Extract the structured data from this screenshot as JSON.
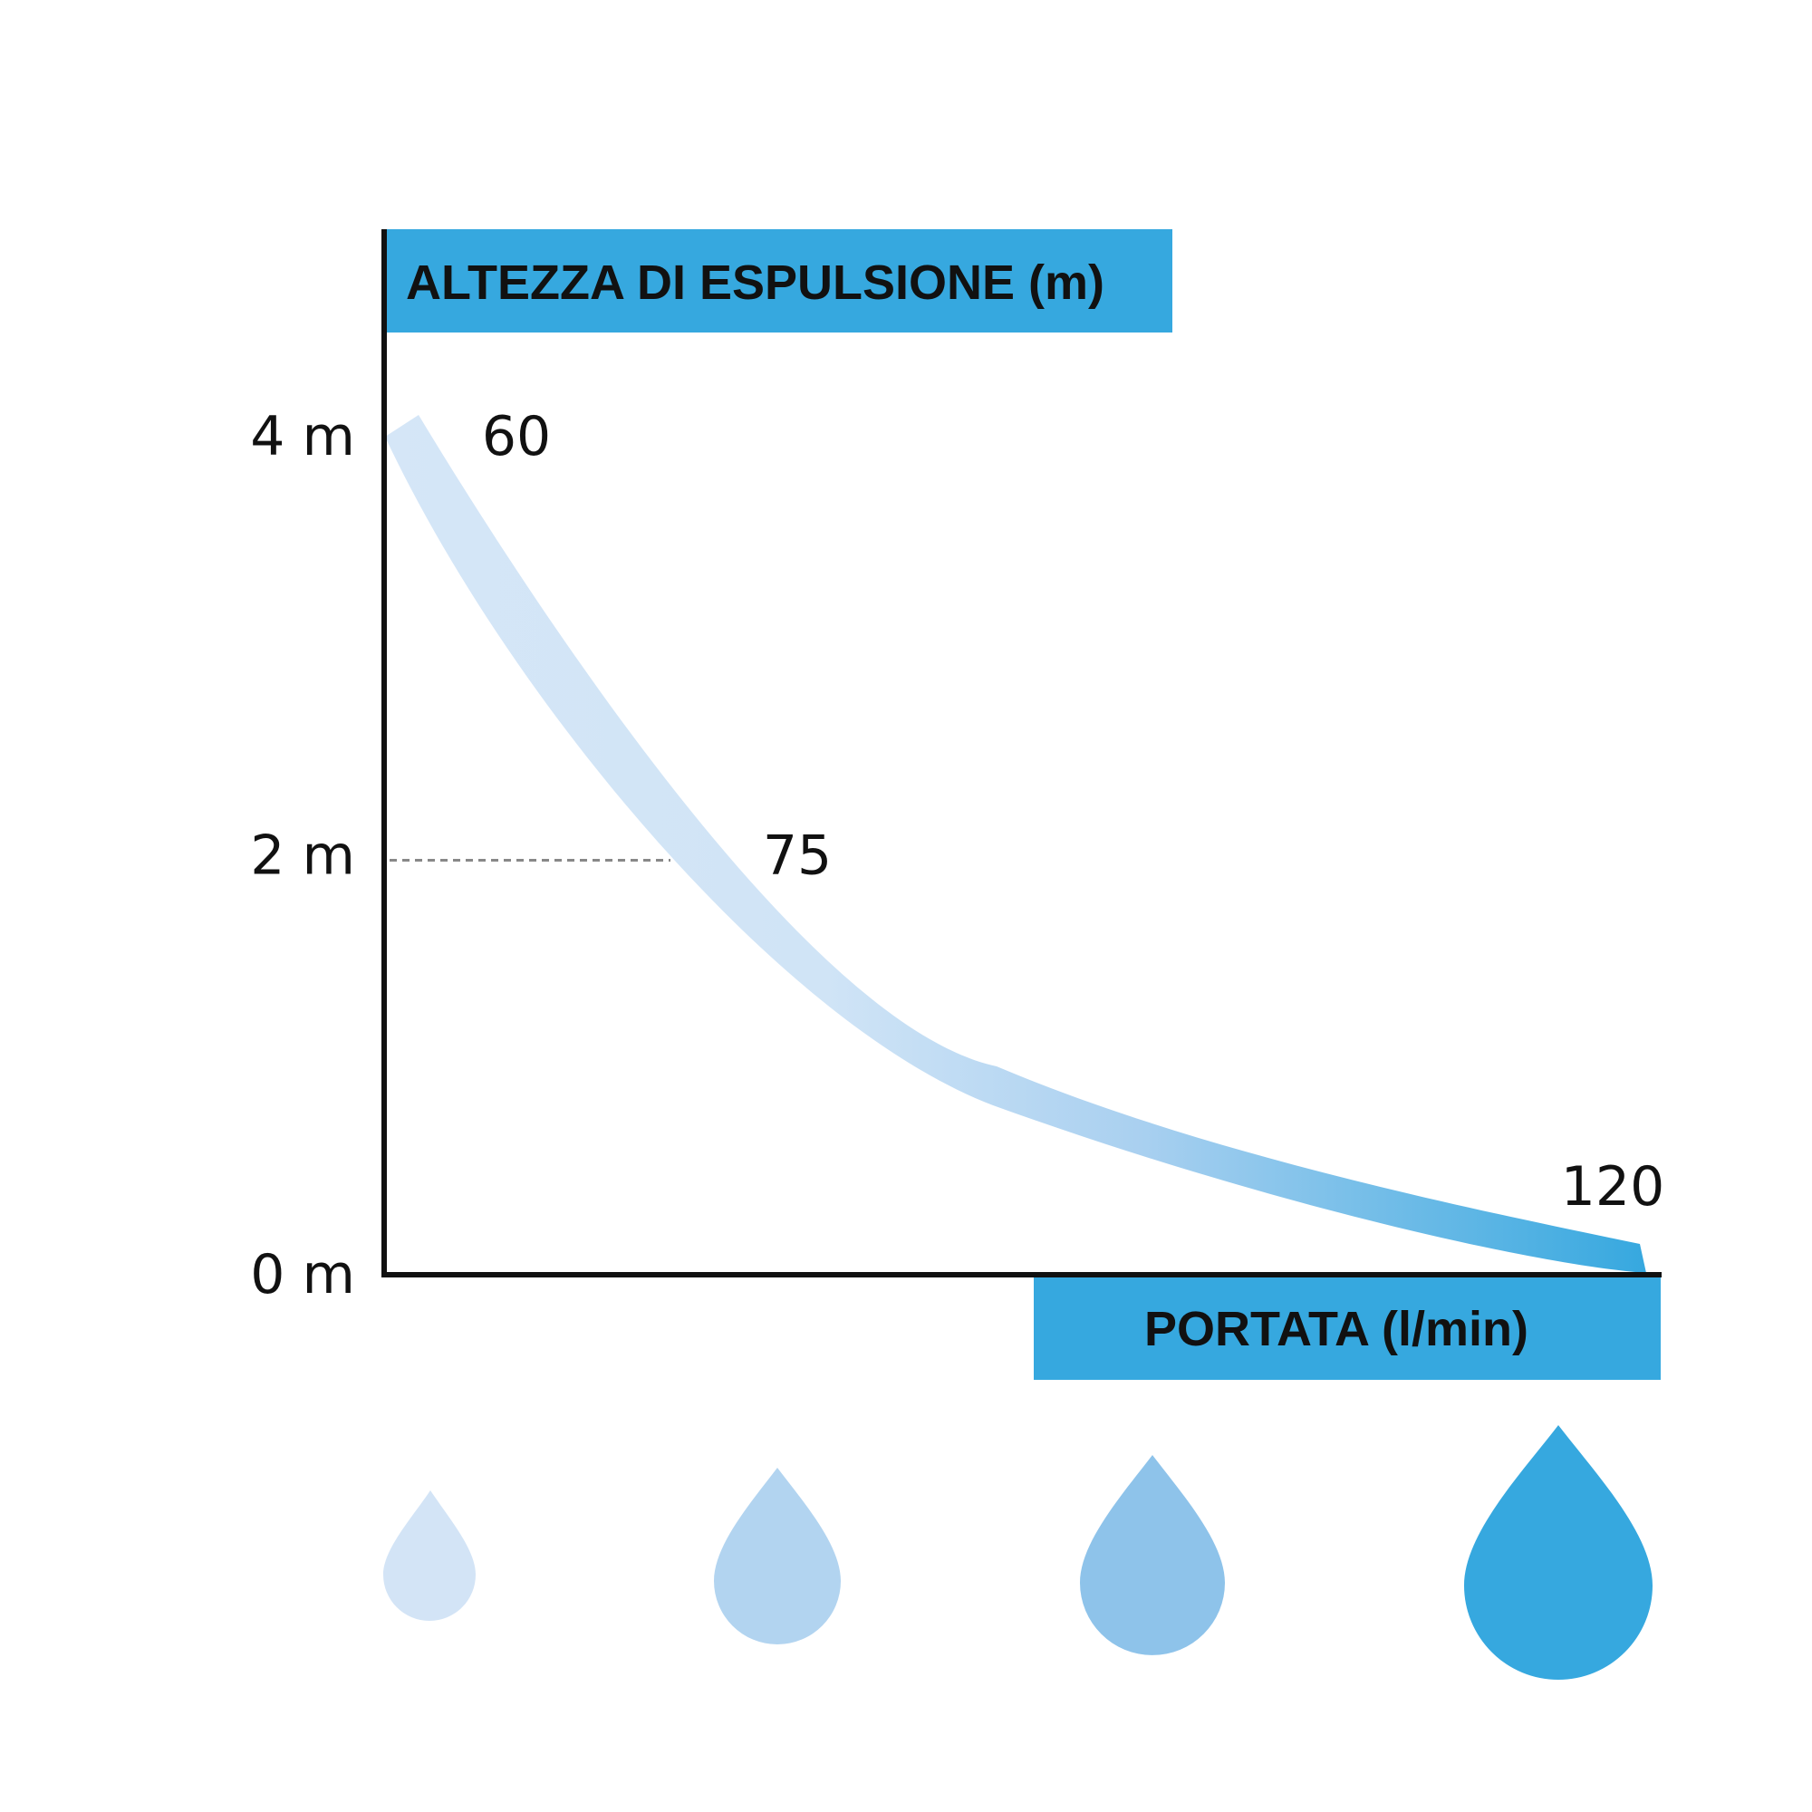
{
  "chart_data": {
    "type": "line",
    "y_axis_title": "ALTEZZA DI ESPULSIONE (m)",
    "x_axis_title": "PORTATA (l/min)",
    "y_ticks": [
      {
        "value": 0,
        "label": "0 m"
      },
      {
        "value": 2,
        "label": "2 m"
      },
      {
        "value": 4,
        "label": "4 m"
      }
    ],
    "ylim": [
      0,
      4
    ],
    "series": [
      {
        "points": [
          {
            "flow": 60,
            "height": 4.0,
            "label": "60"
          },
          {
            "flow": 75,
            "height": 2.0,
            "label": "75"
          },
          {
            "flow": 120,
            "height": 0.0,
            "label": "120"
          }
        ]
      }
    ],
    "reference_line": {
      "height": 2,
      "style": "dotted"
    },
    "grid": false,
    "colors": {
      "accent": "#36a8df",
      "curve_start": "#d5e6f7",
      "curve_end": "#36a8df",
      "axis": "#111111",
      "drops": [
        "#d3e4f6",
        "#b2d4f0",
        "#8ec3ea",
        "#36a8df"
      ]
    }
  }
}
